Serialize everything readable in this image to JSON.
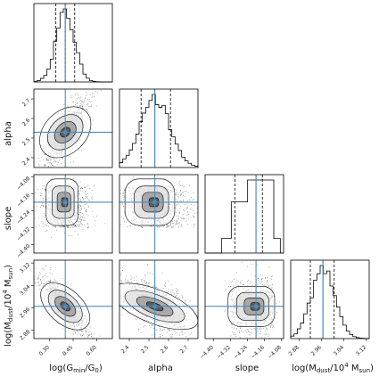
{
  "chart_data": {
    "type": "corner",
    "parameters": [
      {
        "key": "logG",
        "label_main": "log(G",
        "label_sub": "min",
        "label_tail": "/G",
        "label_sub2": "0",
        "label_end": ")",
        "truth": 0.4,
        "quantiles": [
          0.34,
          0.4,
          0.46
        ],
        "range": [
          0.2,
          0.7
        ],
        "ticks": [
          "0.30",
          "0.45",
          "0.60"
        ],
        "tick_values": [
          0.3,
          0.45,
          0.6
        ]
      },
      {
        "key": "alpha",
        "label": "alpha",
        "truth": 2.53,
        "quantiles": [
          2.46,
          2.53,
          2.61
        ],
        "range": [
          2.35,
          2.75
        ],
        "ticks": [
          "2.4",
          "2.5",
          "2.6",
          "2.7"
        ],
        "tick_values": [
          2.4,
          2.5,
          2.6,
          2.7
        ]
      },
      {
        "key": "slope",
        "label": "slope",
        "truth": -4.2,
        "quantiles": [
          -4.3,
          -4.2,
          -4.17
        ],
        "range": [
          -4.44,
          -4.07
        ],
        "ticks": [
          "-4.40",
          "-4.32",
          "-4.24",
          "-4.16",
          "-4.08"
        ],
        "tick_values": [
          -4.4,
          -4.32,
          -4.24,
          -4.16,
          -4.08
        ]
      },
      {
        "key": "logM",
        "label_main": "log(M",
        "label_sub": "dust",
        "label_tail": "/10",
        "label_sup": "4",
        "label_end2": " M",
        "label_sub2": "sun",
        "label_end": ")",
        "truth": 2.965,
        "quantiles": [
          2.92,
          2.965,
          3.005
        ],
        "range": [
          2.85,
          3.13
        ],
        "ticks": [
          "2.88",
          "2.96",
          "3.04",
          "3.12"
        ],
        "tick_values": [
          2.88,
          2.96,
          3.04,
          3.12
        ]
      }
    ],
    "row_labels": [
      "",
      "alpha",
      "slope",
      "log(M_dust/10^4 M_sun)"
    ],
    "column_labels": [
      "log(G_min/G0)",
      "alpha",
      "slope",
      "log(M_dust/10^4 M_sun)"
    ],
    "truth_color": "#4c8ebf",
    "hist_color": "#000000"
  },
  "labels": {
    "x0": "log(G",
    "x0_sub": "min",
    "x0_mid": "/G",
    "x0_sub2": "0",
    "x0_end": ")",
    "x1": "alpha",
    "x2": "slope",
    "x3": "log(M",
    "x3_sub": "dust",
    "x3_mid": "/10",
    "x3_sup": "4",
    "x3_mid2": " M",
    "x3_sub2": "sun",
    "x3_end": ")",
    "y1": "alpha",
    "y2": "slope",
    "y3": "log(M",
    "y3_sub": "dust",
    "y3_mid": "/10",
    "y3_sup": "4",
    "y3_mid2": " M",
    "y3_sub2": "sun",
    "y3_end": ")"
  }
}
